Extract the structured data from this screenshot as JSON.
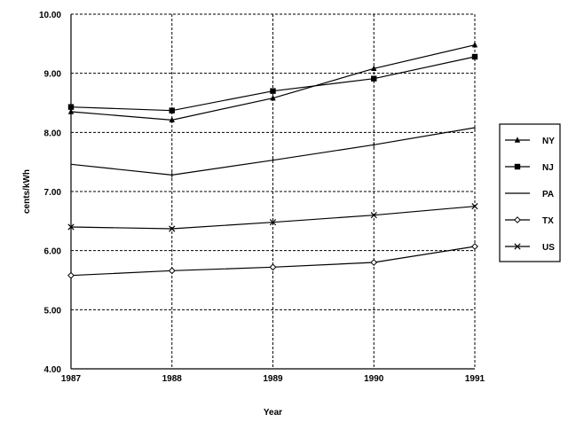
{
  "chart_data": {
    "type": "line",
    "x": [
      "1987",
      "1988",
      "1989",
      "1990",
      "1991"
    ],
    "xlabel": "Year",
    "ylabel": "cents/kWh",
    "ylim": [
      4.0,
      10.0
    ],
    "yticks": [
      "4.00",
      "5.00",
      "6.00",
      "7.00",
      "8.00",
      "9.00",
      "10.00"
    ],
    "grid": true,
    "legend_position": "right",
    "series": [
      {
        "name": "NY",
        "marker": "triangle",
        "values": [
          8.35,
          8.21,
          8.58,
          9.08,
          9.48
        ]
      },
      {
        "name": "NJ",
        "marker": "square",
        "values": [
          8.43,
          8.37,
          8.7,
          8.91,
          9.28
        ]
      },
      {
        "name": "PA",
        "marker": "none",
        "values": [
          7.46,
          7.28,
          7.53,
          7.79,
          8.08
        ]
      },
      {
        "name": "TX",
        "marker": "diamond",
        "values": [
          5.58,
          5.66,
          5.72,
          5.8,
          6.07
        ]
      },
      {
        "name": "US",
        "marker": "x",
        "values": [
          6.4,
          6.37,
          6.48,
          6.6,
          6.75
        ]
      }
    ]
  }
}
